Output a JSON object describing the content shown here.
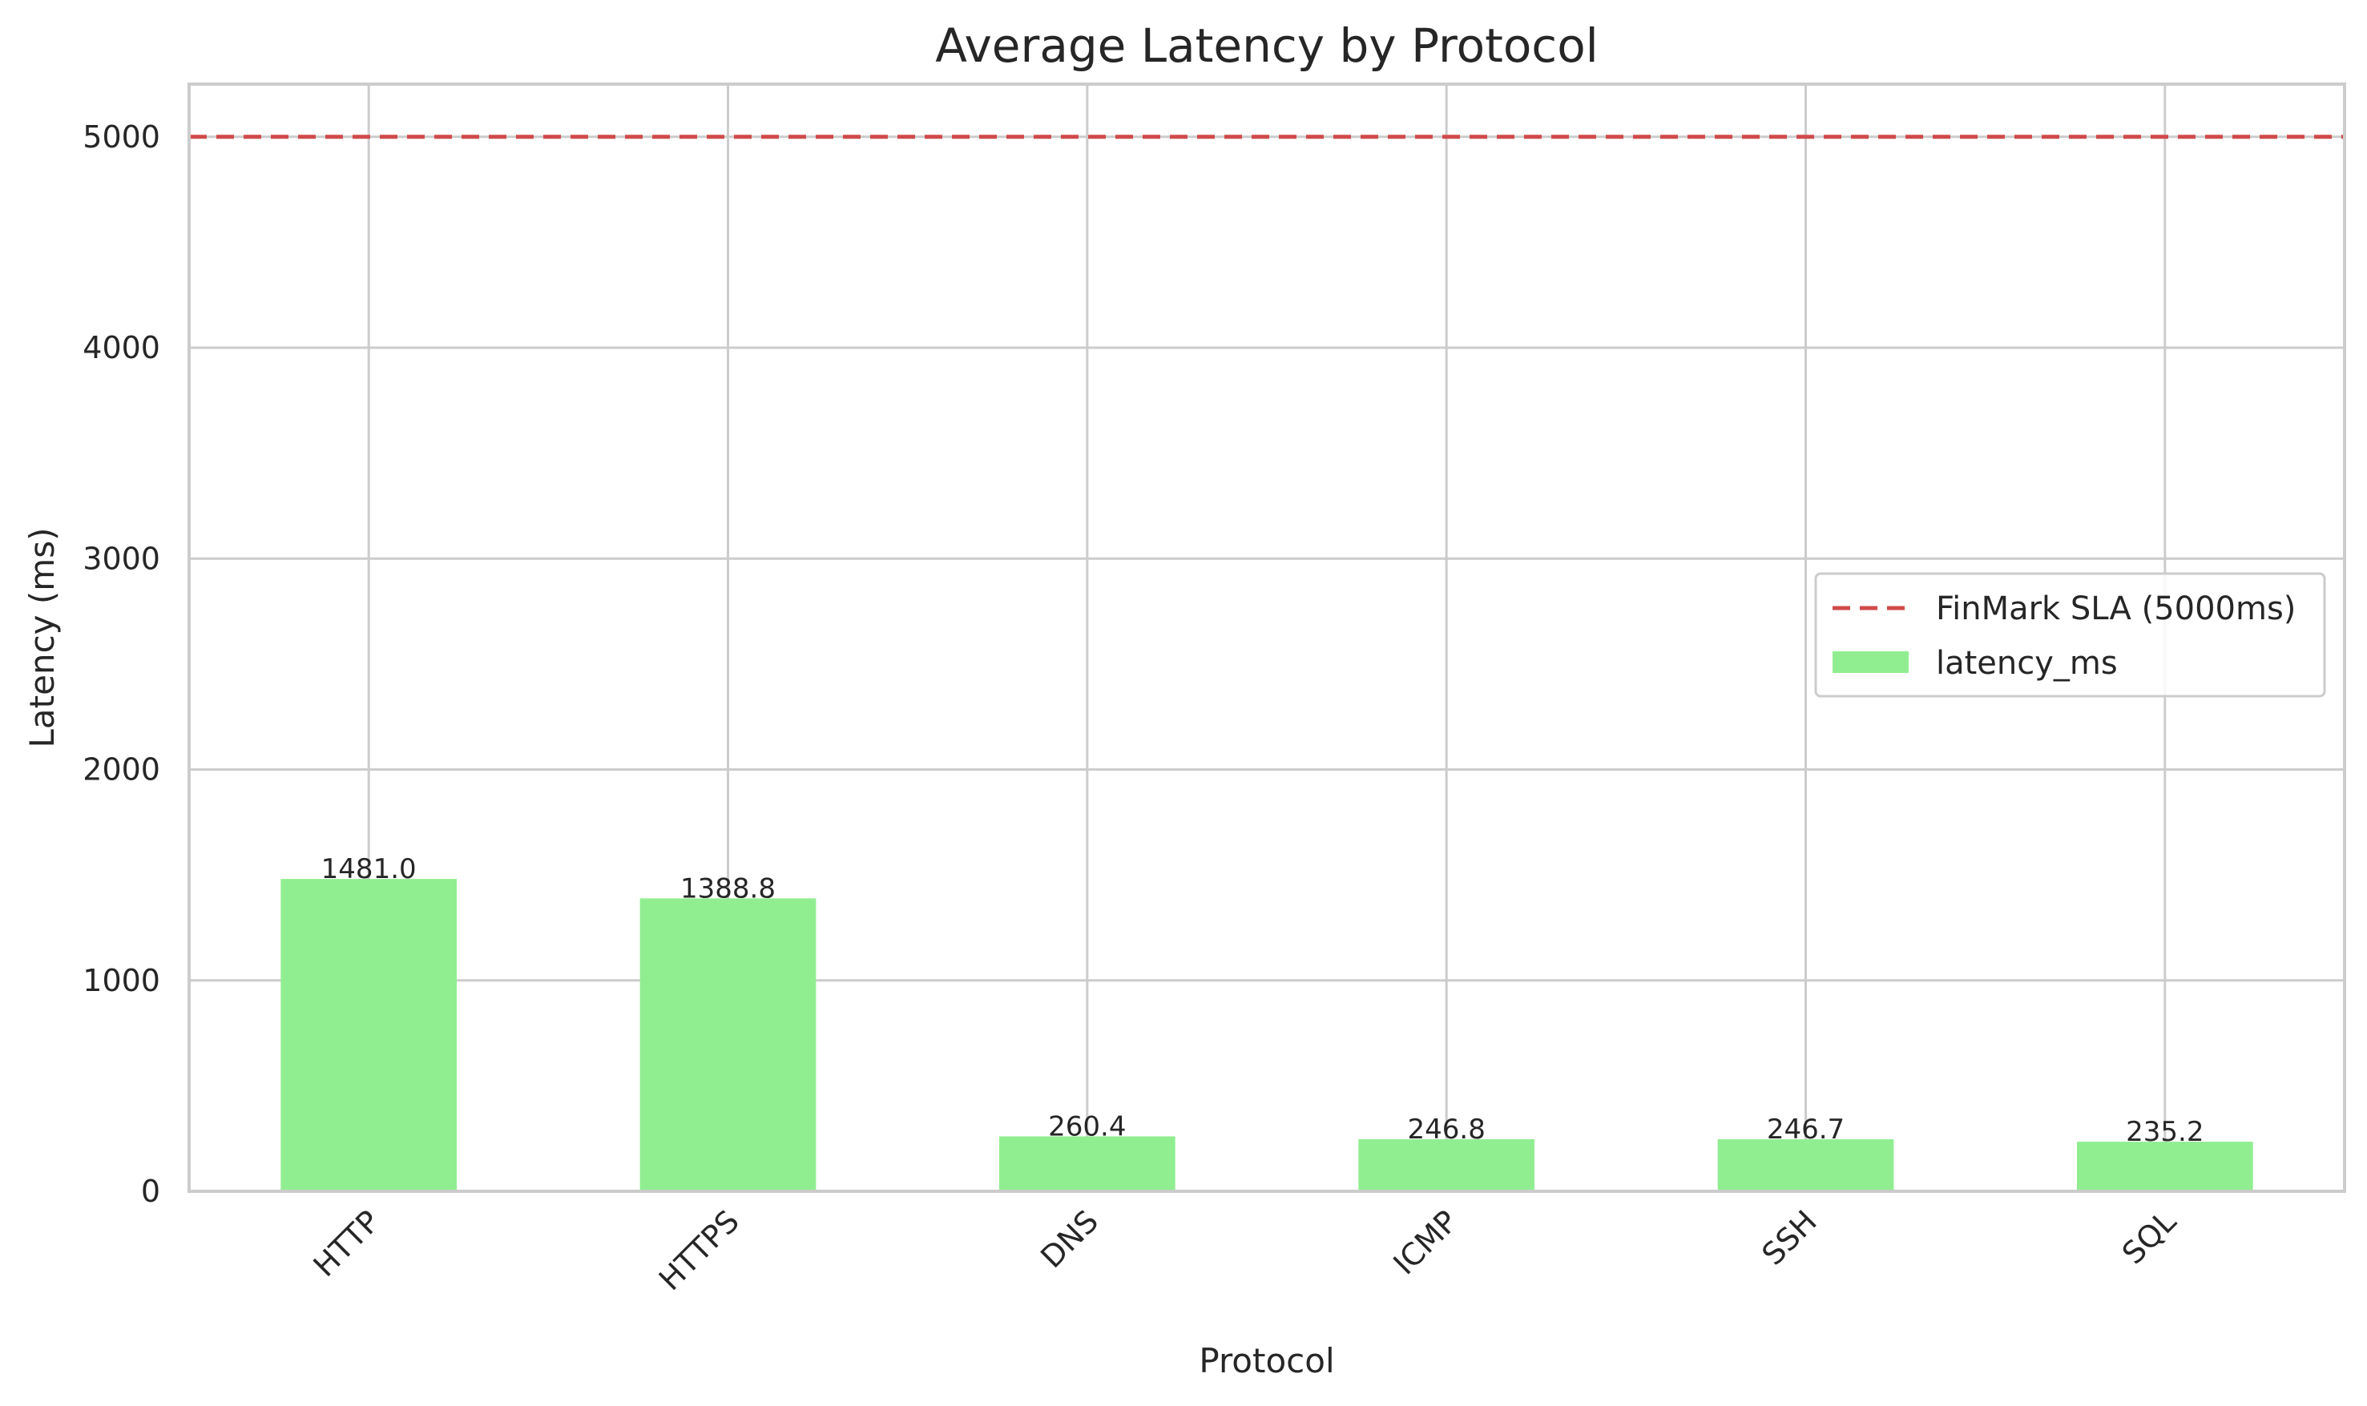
{
  "chart_data": {
    "type": "bar",
    "title": "Average Latency by Protocol",
    "xlabel": "Protocol",
    "ylabel": "Latency (ms)",
    "categories": [
      "HTTP",
      "HTTPS",
      "DNS",
      "ICMP",
      "SSH",
      "SQL"
    ],
    "series": [
      {
        "name": "latency_ms",
        "values": [
          1481.0,
          1388.8,
          260.4,
          246.8,
          246.7,
          235.2
        ],
        "color": "#90ee90"
      }
    ],
    "data_labels": [
      "1481.0",
      "1388.8",
      "260.4",
      "246.8",
      "246.7",
      "235.2"
    ],
    "ylim": [
      0,
      5250
    ],
    "yticks": [
      0,
      1000,
      2000,
      3000,
      4000,
      5000
    ],
    "ytick_labels": [
      "0",
      "1000",
      "2000",
      "3000",
      "4000",
      "5000"
    ],
    "reference_line": {
      "name": "FinMark SLA (5000ms)",
      "value": 5000,
      "color": "#d04a4a",
      "style": "dashed"
    },
    "grid": true,
    "legend_position": "center-right"
  }
}
